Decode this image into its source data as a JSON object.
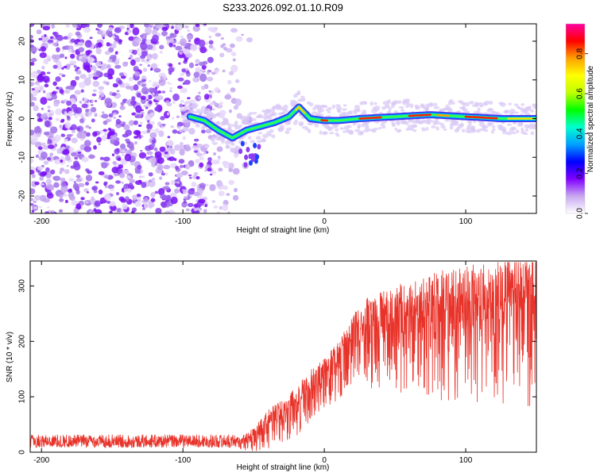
{
  "title": "S233.2026.092.01.10.R09",
  "chart_data": [
    {
      "type": "heatmap",
      "xlabel": "Height of straight line (km)",
      "ylabel": "Frequency (Hz)",
      "xlim": [
        -208,
        150
      ],
      "ylim": [
        -24.5,
        24.5
      ],
      "x_ticks": [
        -200,
        -100,
        0,
        100
      ],
      "x_tick_labels": [
        "-200",
        "-100",
        "0",
        "100"
      ],
      "y_ticks": [
        -20,
        -10,
        0,
        10,
        20
      ],
      "y_tick_labels": [
        "-20",
        "-10",
        "0",
        "10",
        "20"
      ],
      "noise_region_x": [
        -208,
        -60
      ],
      "ridge": {
        "x": [
          -95,
          -85,
          -75,
          -65,
          -55,
          -45,
          -35,
          -25,
          -18,
          -10,
          0,
          10,
          25,
          50,
          75,
          100,
          125,
          150
        ],
        "y": [
          0.5,
          -0.5,
          -3,
          -5,
          -3,
          -2,
          -1,
          0.5,
          3,
          0,
          -0.5,
          -0.5,
          0,
          0.5,
          1,
          0.5,
          0,
          0
        ]
      },
      "colorbar": {
        "label": "Normalized spectral amplitude",
        "range": [
          0,
          0.95
        ],
        "ticks": [
          0.0,
          0.2,
          0.4,
          0.6,
          0.8
        ],
        "tick_labels": [
          "0.0",
          "0.2",
          "0.4",
          "0.6",
          "0.8"
        ],
        "colors": [
          "#ffffff",
          "#c8a8f0",
          "#8000ff",
          "#0000ff",
          "#00a0ff",
          "#00ffd0",
          "#00ff00",
          "#c0ff00",
          "#ffff00",
          "#ffa000",
          "#ff0000",
          "#ff00a0"
        ]
      }
    },
    {
      "type": "line",
      "xlabel": "Height of straight line (km)",
      "ylabel": "SNR (10 * v/v)",
      "xlim": [
        -208,
        150
      ],
      "ylim": [
        0,
        345
      ],
      "x_ticks": [
        -200,
        -100,
        0,
        100
      ],
      "x_tick_labels": [
        "-200",
        "-100",
        "0",
        "100"
      ],
      "y_ticks": [
        0,
        100,
        200,
        300
      ],
      "y_tick_labels": [
        "0",
        "100",
        "200",
        "300"
      ],
      "series": [
        {
          "name": "SNR",
          "color": "#e8332a",
          "envelope_x": [
            -208,
            -60,
            -50,
            -40,
            -30,
            -20,
            -10,
            0,
            10,
            20,
            30,
            50,
            80,
            110,
            130,
            150
          ],
          "envelope_mean": [
            20,
            20,
            30,
            55,
            70,
            90,
            120,
            140,
            170,
            210,
            230,
            240,
            255,
            265,
            270,
            270
          ],
          "envelope_amp": [
            12,
            12,
            25,
            40,
            45,
            50,
            55,
            55,
            60,
            70,
            90,
            110,
            130,
            140,
            150,
            150
          ]
        }
      ]
    }
  ]
}
